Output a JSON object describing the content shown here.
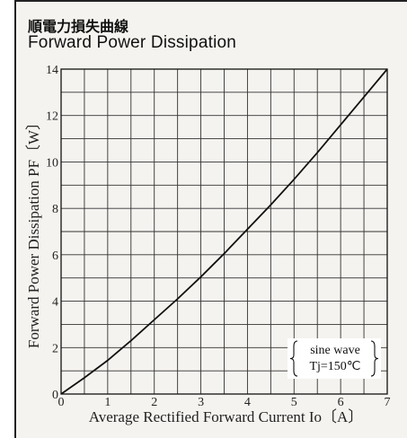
{
  "header": {
    "title_jp": "順電力損失曲線",
    "title_en": "Forward Power Dissipation"
  },
  "chart_data": {
    "type": "line",
    "title": "Forward Power Dissipation",
    "xlabel": "Average Rectified Forward Current Io〔A〕",
    "ylabel": "Forward Power Dissipation PF〔W〕",
    "xlim": [
      0,
      7
    ],
    "ylim": [
      0,
      14
    ],
    "x_ticks": [
      "0",
      "1",
      "2",
      "3",
      "4",
      "5",
      "6",
      "7"
    ],
    "y_ticks": [
      "0",
      "2",
      "4",
      "6",
      "8",
      "10",
      "12",
      "14"
    ],
    "grid": true,
    "series": [
      {
        "x": [
          0,
          0.5,
          1,
          1.5,
          2,
          2.5,
          3,
          3.5,
          4,
          4.5,
          5,
          5.5,
          6,
          6.5,
          7
        ],
        "y": [
          0,
          0.7,
          1.45,
          2.3,
          3.2,
          4.1,
          5.05,
          6.05,
          7.1,
          8.15,
          9.25,
          10.4,
          11.6,
          12.8,
          14.0
        ]
      }
    ],
    "annotations": [
      "sine wave",
      "Tj=150℃"
    ]
  },
  "colors": {
    "background": "#f5f3ef",
    "grid": "#333333",
    "curve": "#111111"
  }
}
